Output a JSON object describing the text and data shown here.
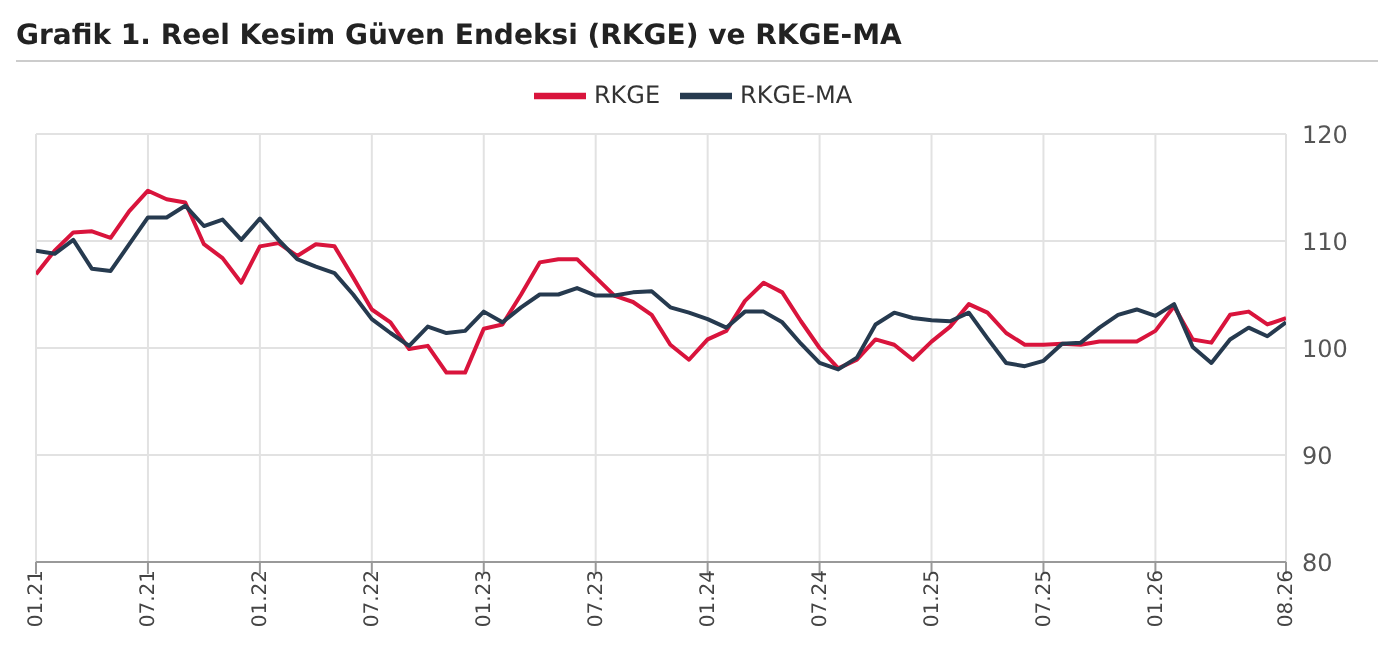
{
  "chart_data": {
    "type": "line",
    "title": "Grafik 1. Reel Kesim Güven Endeksi (RKGE) ve RKGE-MA",
    "categories": [
      "01.21",
      null,
      null,
      null,
      null,
      null,
      "07.21",
      null,
      null,
      null,
      null,
      null,
      "01.22",
      null,
      null,
      null,
      null,
      null,
      "07.22",
      null,
      null,
      null,
      null,
      null,
      "01.23",
      null,
      null,
      null,
      null,
      null,
      "07.23",
      null,
      null,
      null,
      null,
      null,
      "01.24",
      null,
      null,
      null,
      null,
      null,
      "07.24",
      null,
      null,
      null,
      null,
      null,
      "01.25",
      null,
      null,
      null,
      null,
      null,
      "07.25",
      null,
      null,
      null,
      null,
      null,
      "01.26",
      null,
      null,
      null,
      null,
      null,
      null,
      "08.26"
    ],
    "series": [
      {
        "name": "RKGE",
        "color": "#d9143c",
        "values": [
          106.9,
          109.1,
          110.8,
          110.9,
          110.3,
          112.8,
          114.7,
          113.9,
          113.6,
          109.7,
          108.4,
          106.1,
          109.5,
          109.8,
          108.6,
          109.7,
          109.5,
          106.6,
          103.6,
          102.4,
          99.9,
          100.2,
          97.7,
          97.7,
          101.8,
          102.2,
          105.0,
          108.0,
          108.3,
          108.3,
          106.6,
          104.9,
          104.3,
          103.1,
          100.3,
          98.9,
          100.8,
          101.6,
          104.4,
          106.1,
          105.2,
          102.5,
          100.0,
          98.1,
          98.9,
          100.8,
          100.3,
          98.9,
          100.6,
          102.0,
          104.1,
          103.3,
          101.4,
          100.3,
          100.3,
          100.4,
          100.3,
          100.6,
          100.6,
          100.6,
          101.6,
          103.9,
          100.8,
          100.5,
          103.1,
          103.4,
          102.2,
          102.8
        ]
      },
      {
        "name": "RKGE-MA",
        "color": "#263a4f",
        "values": [
          109.1,
          108.8,
          110.1,
          107.4,
          107.2,
          109.7,
          112.2,
          112.2,
          113.3,
          111.4,
          112.0,
          110.1,
          112.1,
          110.1,
          108.3,
          107.6,
          107.0,
          105.0,
          102.7,
          101.4,
          100.2,
          102.0,
          101.4,
          101.6,
          103.4,
          102.4,
          103.8,
          105.0,
          105.0,
          105.6,
          104.9,
          104.9,
          105.2,
          105.3,
          103.8,
          103.3,
          102.7,
          101.9,
          103.4,
          103.4,
          102.4,
          100.4,
          98.6,
          98.0,
          99.1,
          102.2,
          103.3,
          102.8,
          102.6,
          102.5,
          103.3,
          100.9,
          98.6,
          98.3,
          98.8,
          100.4,
          100.5,
          101.9,
          103.1,
          103.6,
          103.0,
          104.1,
          100.1,
          98.6,
          100.8,
          101.9,
          101.1,
          102.4
        ]
      }
    ],
    "ylim": [
      80,
      120
    ],
    "yticks": [
      80,
      90,
      100,
      110,
      120
    ],
    "grid": true,
    "legend": "top",
    "marker": "none",
    "line_style": "solid"
  }
}
